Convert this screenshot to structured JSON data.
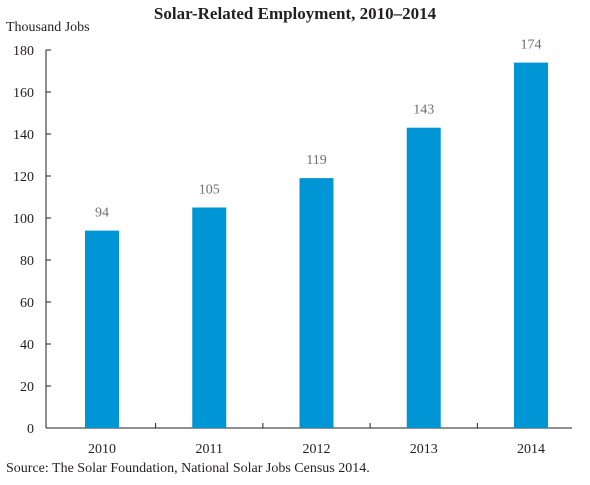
{
  "chart_data": {
    "type": "bar",
    "title": "Solar-Related Employment, 2010–2014",
    "ylabel": "Thousand Jobs",
    "xlabel": "",
    "categories": [
      "2010",
      "2011",
      "2012",
      "2013",
      "2014"
    ],
    "values": [
      94,
      105,
      119,
      143,
      174
    ],
    "data_labels": [
      "94",
      "105",
      "119",
      "143",
      "174"
    ],
    "ylim": [
      0,
      180
    ],
    "y_ticks": [
      0,
      20,
      40,
      60,
      80,
      100,
      120,
      140,
      160,
      180
    ],
    "grid": false,
    "legend": "none",
    "bar_color": "#0096d6",
    "source": "Source: The Solar Foundation, National Solar Jobs Census 2014."
  }
}
